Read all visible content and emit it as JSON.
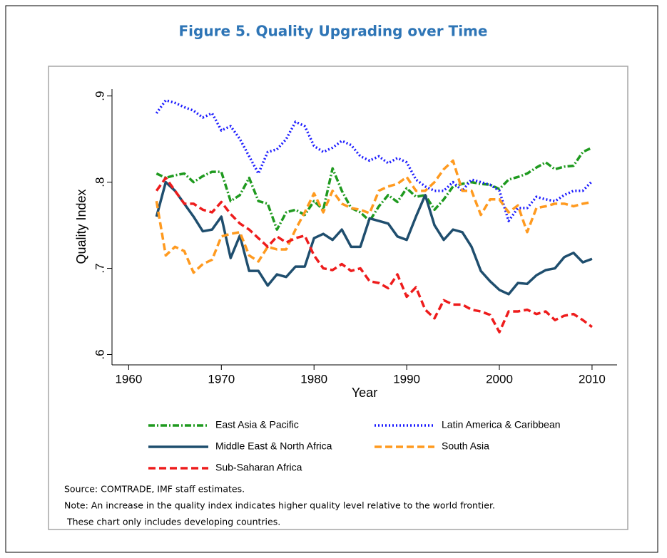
{
  "chart_data": {
    "type": "line",
    "title": "Figure 5. Quality Upgrading over Time",
    "x_label": "Year",
    "y_label": "Quality Index",
    "x": [
      1963,
      1964,
      1965,
      1966,
      1967,
      1968,
      1969,
      1970,
      1971,
      1972,
      1973,
      1974,
      1975,
      1976,
      1977,
      1978,
      1979,
      1980,
      1981,
      1982,
      1983,
      1984,
      1985,
      1986,
      1987,
      1988,
      1989,
      1990,
      1991,
      1992,
      1993,
      1994,
      1995,
      1996,
      1997,
      1998,
      1999,
      2000,
      2001,
      2002,
      2003,
      2004,
      2005,
      2006,
      2007,
      2008,
      2009,
      2010
    ],
    "series": [
      {
        "name": "East Asia & Pacific",
        "color": "#1f9a1f",
        "style": "dash-dot",
        "values": [
          0.81,
          0.805,
          0.808,
          0.81,
          0.8,
          0.807,
          0.812,
          0.812,
          0.778,
          0.785,
          0.805,
          0.778,
          0.775,
          0.745,
          0.765,
          0.768,
          0.762,
          0.778,
          0.768,
          0.816,
          0.79,
          0.77,
          0.765,
          0.755,
          0.772,
          0.785,
          0.777,
          0.793,
          0.783,
          0.785,
          0.768,
          0.78,
          0.795,
          0.798,
          0.8,
          0.798,
          0.797,
          0.792,
          0.803,
          0.806,
          0.81,
          0.817,
          0.823,
          0.815,
          0.818,
          0.819,
          0.835,
          0.84
        ]
      },
      {
        "name": "Latin America & Caribbean",
        "color": "#1a1aff",
        "style": "dot",
        "values": [
          0.88,
          0.895,
          0.892,
          0.887,
          0.883,
          0.875,
          0.88,
          0.86,
          0.865,
          0.85,
          0.83,
          0.81,
          0.835,
          0.838,
          0.85,
          0.87,
          0.865,
          0.842,
          0.835,
          0.84,
          0.848,
          0.843,
          0.83,
          0.825,
          0.83,
          0.822,
          0.828,
          0.823,
          0.803,
          0.795,
          0.79,
          0.79,
          0.8,
          0.79,
          0.803,
          0.8,
          0.797,
          0.79,
          0.755,
          0.77,
          0.77,
          0.783,
          0.78,
          0.778,
          0.785,
          0.79,
          0.79,
          0.801
        ]
      },
      {
        "name": "Middle East & North Africa",
        "color": "#1f4e6e",
        "style": "solid",
        "values": [
          0.76,
          0.8,
          0.79,
          0.775,
          0.76,
          0.743,
          0.745,
          0.76,
          0.712,
          0.738,
          0.697,
          0.697,
          0.68,
          0.693,
          0.69,
          0.702,
          0.702,
          0.735,
          0.74,
          0.733,
          0.745,
          0.725,
          0.725,
          0.758,
          0.755,
          0.752,
          0.737,
          0.733,
          0.76,
          0.785,
          0.75,
          0.733,
          0.745,
          0.742,
          0.725,
          0.697,
          0.685,
          0.675,
          0.67,
          0.683,
          0.682,
          0.692,
          0.698,
          0.7,
          0.713,
          0.718,
          0.707,
          0.711
        ]
      },
      {
        "name": "South Asia",
        "color": "#ff9a1f",
        "style": "dash",
        "values": [
          0.778,
          0.715,
          0.725,
          0.72,
          0.695,
          0.705,
          0.71,
          0.737,
          0.74,
          0.742,
          0.715,
          0.708,
          0.725,
          0.722,
          0.722,
          0.745,
          0.765,
          0.787,
          0.765,
          0.79,
          0.775,
          0.77,
          0.768,
          0.764,
          0.79,
          0.795,
          0.798,
          0.806,
          0.79,
          0.79,
          0.8,
          0.815,
          0.825,
          0.79,
          0.79,
          0.762,
          0.78,
          0.78,
          0.765,
          0.773,
          0.742,
          0.77,
          0.772,
          0.775,
          0.775,
          0.772,
          0.775,
          0.777
        ]
      },
      {
        "name": "Sub-Saharan Africa",
        "color": "#ee1c1c",
        "style": "dash",
        "values": [
          0.79,
          0.805,
          0.79,
          0.775,
          0.775,
          0.768,
          0.765,
          0.777,
          0.763,
          0.752,
          0.745,
          0.735,
          0.725,
          0.737,
          0.73,
          0.735,
          0.738,
          0.715,
          0.7,
          0.698,
          0.705,
          0.697,
          0.7,
          0.685,
          0.683,
          0.677,
          0.693,
          0.667,
          0.678,
          0.652,
          0.642,
          0.663,
          0.658,
          0.658,
          0.652,
          0.65,
          0.646,
          0.626,
          0.65,
          0.65,
          0.652,
          0.647,
          0.65,
          0.64,
          0.645,
          0.647,
          0.64,
          0.632
        ]
      }
    ],
    "xlim": [
      1958.2,
      2012.7
    ],
    "xticks": [
      1960,
      1970,
      1980,
      1990,
      2000,
      2010
    ],
    "ylim": [
      0.588,
      0.908
    ],
    "yticks": [
      {
        "value": 0.6,
        "label": ".6"
      },
      {
        "value": 0.7,
        "label": ".7"
      },
      {
        "value": 0.8,
        "label": ".8"
      },
      {
        "value": 0.9,
        "label": ".9"
      }
    ],
    "grid": false,
    "legend": "bottom",
    "source": "Source: COMTRADE, IMF staff estimates.",
    "notes": [
      "Note: An increase in the quality index indicates higher quality level relative to the world frontier.",
      " These chart only includes developing countries."
    ]
  }
}
